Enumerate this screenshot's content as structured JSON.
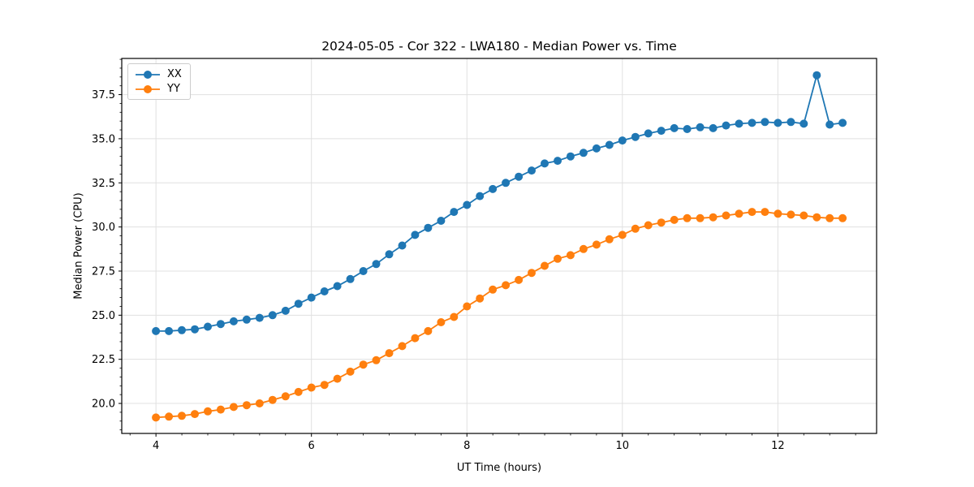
{
  "title": "2024-05-05 - Cor 322 - LWA180 - Median Power vs. Time",
  "axes": {
    "xlabel": "UT Time (hours)",
    "ylabel": "Median Power (CPU)",
    "x_tick_labels": [
      "4",
      "6",
      "8",
      "10",
      "12"
    ],
    "y_tick_labels": [
      "20.0",
      "22.5",
      "25.0",
      "27.5",
      "30.0",
      "32.5",
      "35.0",
      "37.5"
    ]
  },
  "legend": {
    "position": "upper left",
    "entries": [
      "XX",
      "YY"
    ]
  },
  "chart_data": {
    "type": "line",
    "title": "2024-05-05 - Cor 322 - LWA180 - Median Power vs. Time",
    "xlabel": "UT Time (hours)",
    "ylabel": "Median Power (CPU)",
    "xlim": [
      3.56,
      13.27
    ],
    "ylim": [
      18.3,
      39.55
    ],
    "x_ticks": [
      4,
      6,
      8,
      10,
      12
    ],
    "y_ticks": [
      20.0,
      22.5,
      25.0,
      27.5,
      30.0,
      32.5,
      35.0,
      37.5
    ],
    "minor_tick_step_x": 0.3333,
    "minor_tick_step_y": 0.5,
    "grid": true,
    "grid_color": "#e0e0e0",
    "legend_position": "upper left",
    "marker": "o",
    "x": [
      4.0,
      4.167,
      4.333,
      4.5,
      4.667,
      4.833,
      5.0,
      5.167,
      5.333,
      5.5,
      5.667,
      5.833,
      6.0,
      6.167,
      6.333,
      6.5,
      6.667,
      6.833,
      7.0,
      7.167,
      7.333,
      7.5,
      7.667,
      7.833,
      8.0,
      8.167,
      8.333,
      8.5,
      8.667,
      8.833,
      9.0,
      9.167,
      9.333,
      9.5,
      9.667,
      9.833,
      10.0,
      10.167,
      10.333,
      10.5,
      10.667,
      10.833,
      11.0,
      11.167,
      11.333,
      11.5,
      11.667,
      11.833,
      12.0,
      12.167,
      12.333,
      12.5,
      12.667,
      12.833
    ],
    "series": [
      {
        "name": "XX",
        "color": "#1f77b4",
        "values": [
          24.1,
          24.1,
          24.15,
          24.2,
          24.35,
          24.5,
          24.65,
          24.75,
          24.85,
          25.0,
          25.25,
          25.65,
          26.0,
          26.35,
          26.65,
          27.05,
          27.5,
          27.9,
          28.45,
          28.95,
          29.55,
          29.95,
          30.35,
          30.85,
          31.25,
          31.75,
          32.15,
          32.5,
          32.85,
          33.2,
          33.6,
          33.75,
          34.0,
          34.2,
          34.45,
          34.65,
          34.9,
          35.1,
          35.3,
          35.45,
          35.6,
          35.55,
          35.65,
          35.6,
          35.75,
          35.85,
          35.9,
          35.95,
          35.9,
          35.95,
          35.85,
          38.6,
          35.8,
          35.9
        ]
      },
      {
        "name": "YY",
        "color": "#ff7f0e",
        "values": [
          19.2,
          19.25,
          19.3,
          19.4,
          19.55,
          19.65,
          19.8,
          19.9,
          20.0,
          20.2,
          20.4,
          20.65,
          20.9,
          21.05,
          21.4,
          21.8,
          22.2,
          22.45,
          22.85,
          23.25,
          23.7,
          24.1,
          24.6,
          24.9,
          25.5,
          25.95,
          26.45,
          26.7,
          27.0,
          27.4,
          27.8,
          28.2,
          28.4,
          28.75,
          29.0,
          29.3,
          29.55,
          29.9,
          30.1,
          30.25,
          30.4,
          30.5,
          30.5,
          30.55,
          30.65,
          30.75,
          30.85,
          30.85,
          30.75,
          30.7,
          30.65,
          30.55,
          30.5,
          30.5
        ]
      }
    ]
  }
}
